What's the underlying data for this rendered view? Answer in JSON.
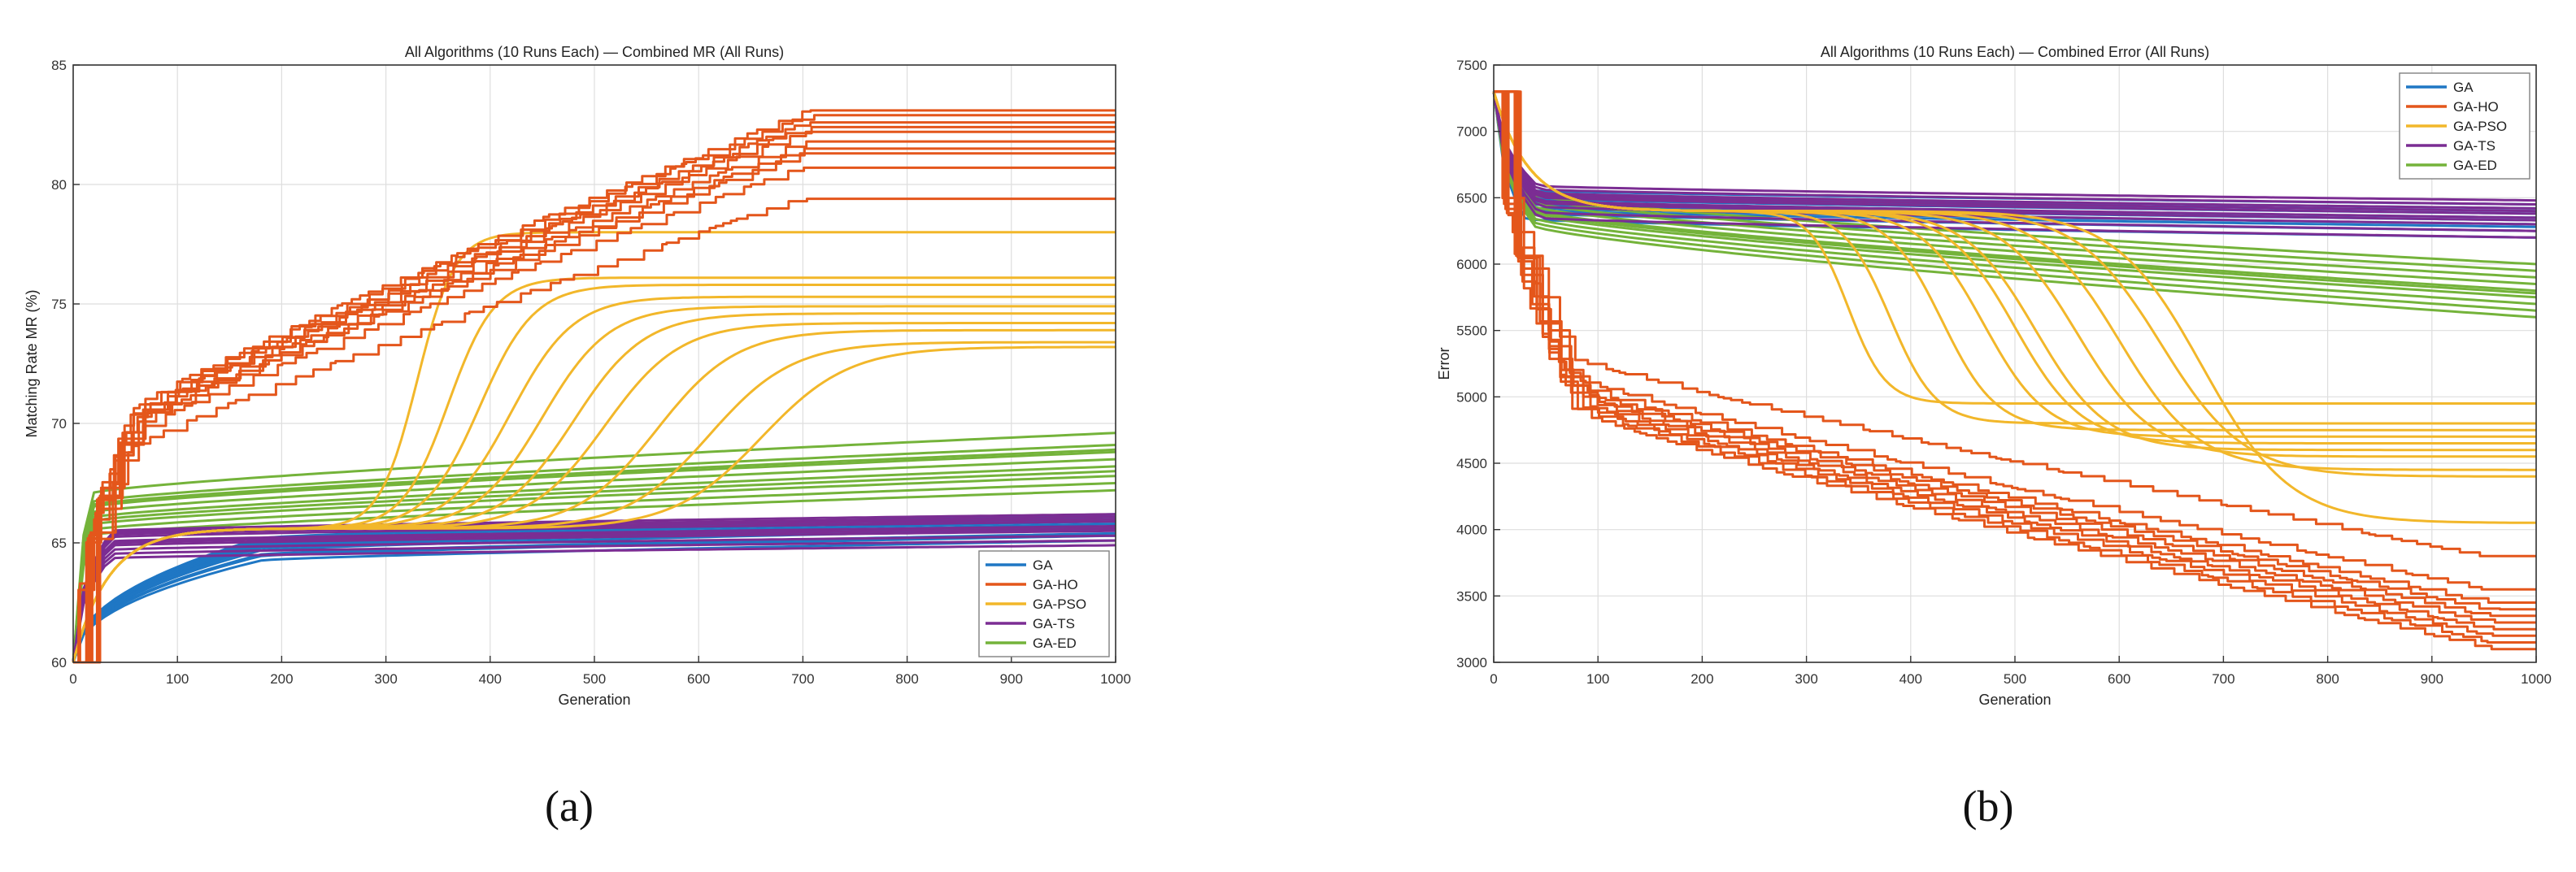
{
  "colors": {
    "GA": "#1f77c4",
    "GA-HO": "#e4561b",
    "GA-PSO": "#f2b72a",
    "GA-TS": "#7b2d93",
    "GA-ED": "#74b33a",
    "grid": "#dedede",
    "axis": "#333333",
    "legend_border": "#808080"
  },
  "panel_labels": [
    "(a)",
    "(b)"
  ],
  "chart_data": [
    {
      "type": "line",
      "title": "All Algorithms (10 Runs Each) — Combined MR (All Runs)",
      "xlabel": "Generation",
      "ylabel": "Matching Rate MR (%)",
      "xlim": [
        0,
        1000
      ],
      "ylim": [
        60,
        85
      ],
      "xticks": [
        0,
        100,
        200,
        300,
        400,
        500,
        600,
        700,
        800,
        900,
        1000
      ],
      "yticks": [
        60,
        65,
        70,
        75,
        80,
        85
      ],
      "grid": true,
      "legend_position": "bottom-right",
      "start_value": 60,
      "series": [
        {
          "name": "GA",
          "kind": "rise",
          "finals": [
            65.1,
            65.4,
            65.6,
            65.8,
            65.9,
            66.0,
            66.1,
            66.2,
            65.3,
            65.7
          ],
          "knee": 0.14,
          "early": 0.83
        },
        {
          "name": "GA-HO",
          "kind": "step",
          "finals": [
            83.1,
            82.9,
            82.6,
            82.4,
            82.2,
            81.8,
            81.5,
            81.3,
            80.7,
            79.4
          ],
          "early": 0.45
        },
        {
          "name": "GA-PSO",
          "kind": "sigmoid",
          "finals": [
            78.0,
            76.1,
            75.8,
            75.3,
            74.9,
            74.6,
            74.2,
            73.9,
            73.4,
            73.2
          ],
          "plateau": 65.6,
          "mids": [
            330,
            360,
            390,
            420,
            450,
            480,
            510,
            560,
            610,
            660
          ],
          "widths": [
            18,
            22,
            26,
            30,
            32,
            34,
            36,
            38,
            40,
            42
          ]
        },
        {
          "name": "GA-TS",
          "kind": "rise",
          "finals": [
            66.2,
            66.1,
            65.9,
            65.7,
            65.5,
            65.3,
            65.1,
            64.9,
            65.6,
            66.0
          ],
          "knee": 0.05,
          "early": 0.88
        },
        {
          "name": "GA-ED",
          "kind": "rise",
          "finals": [
            69.6,
            69.1,
            68.8,
            68.5,
            68.2,
            68.0,
            67.8,
            67.5,
            68.9,
            67.2
          ],
          "knee": 0.02,
          "early": 0.73
        }
      ]
    },
    {
      "type": "line",
      "title": "All Algorithms (10 Runs Each) — Combined Error (All Runs)",
      "xlabel": "Generation",
      "ylabel": "Error",
      "xlim": [
        0,
        1000
      ],
      "ylim": [
        3000,
        7500
      ],
      "xticks": [
        0,
        100,
        200,
        300,
        400,
        500,
        600,
        700,
        800,
        900,
        1000
      ],
      "yticks": [
        3000,
        3500,
        4000,
        4500,
        5000,
        5500,
        6000,
        6500,
        7000,
        7500
      ],
      "grid": true,
      "legend_position": "top-right",
      "start_value": 7300,
      "series": [
        {
          "name": "GA",
          "kind": "rise",
          "finals": [
            6250,
            6300,
            6350,
            6400,
            6420,
            6200,
            6280,
            6330,
            6380,
            6450
          ],
          "knee": 0.03,
          "early": 0.86
        },
        {
          "name": "GA-HO",
          "kind": "step",
          "finals": [
            3100,
            3150,
            3200,
            3250,
            3300,
            3350,
            3400,
            3450,
            3550,
            3800
          ],
          "early": 0.55
        },
        {
          "name": "GA-PSO",
          "kind": "sigmoid",
          "finals": [
            4950,
            4800,
            4750,
            4700,
            4650,
            4600,
            4550,
            4450,
            4400,
            4050
          ],
          "plateau": 6400,
          "mids": [
            340,
            380,
            430,
            470,
            500,
            520,
            560,
            600,
            640,
            680
          ],
          "widths": [
            18,
            22,
            26,
            30,
            32,
            34,
            36,
            38,
            40,
            42
          ]
        },
        {
          "name": "GA-TS",
          "kind": "rise",
          "finals": [
            6200,
            6250,
            6300,
            6330,
            6350,
            6380,
            6400,
            6420,
            6450,
            6480
          ],
          "knee": 0.04,
          "early": 0.85
        },
        {
          "name": "GA-ED",
          "kind": "rise",
          "finals": [
            5600,
            5650,
            5700,
            5750,
            5780,
            5800,
            5850,
            5900,
            5950,
            6000
          ],
          "knee": 0.03,
          "early": 0.58
        }
      ]
    }
  ]
}
